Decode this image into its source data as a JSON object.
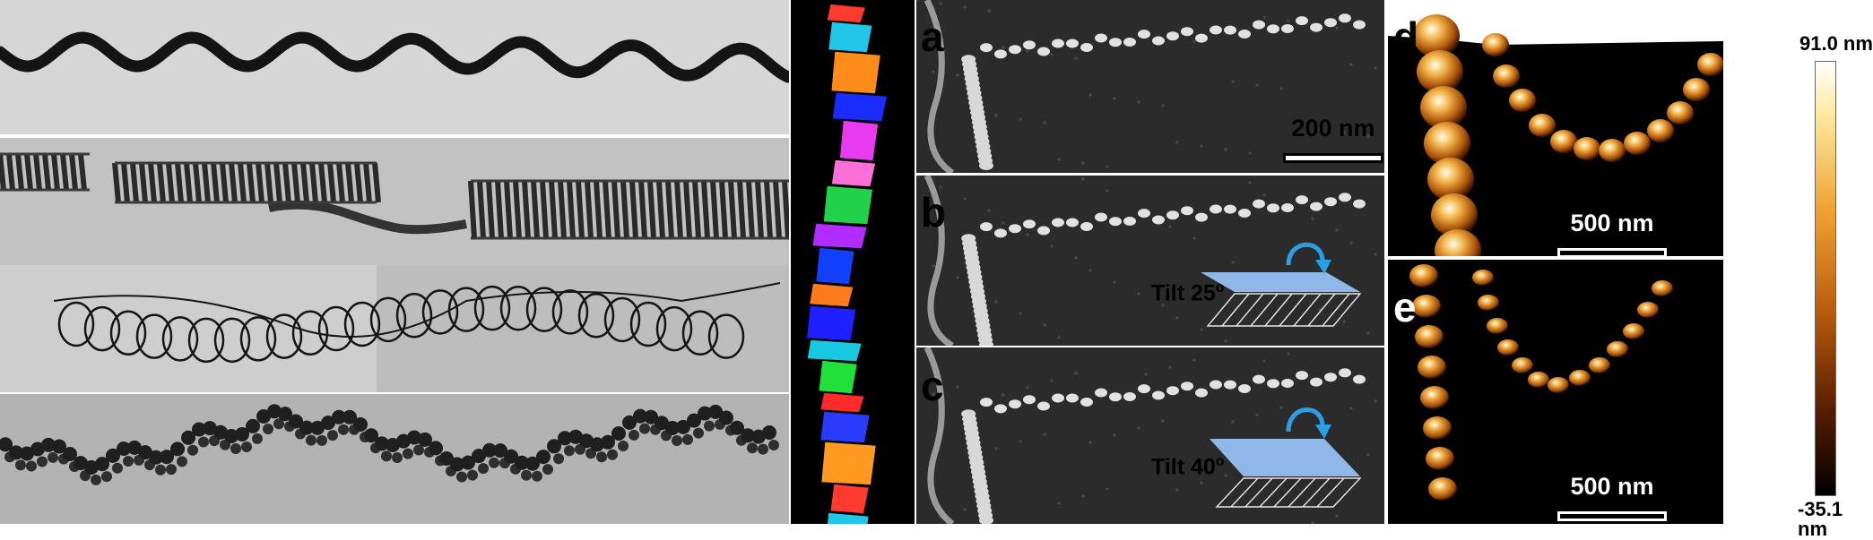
{
  "panels": {
    "a": {
      "letter": "a",
      "scale_label": "200 nm"
    },
    "b": {
      "letter": "b",
      "tilt_label": "Tilt 25",
      "tilt_deg_symbol": "o"
    },
    "c": {
      "letter": "c",
      "tilt_label": "Tilt 40",
      "tilt_deg_symbol": "o"
    },
    "d": {
      "letter": "d",
      "scale_label": "500 nm"
    },
    "e": {
      "letter": "e",
      "scale_label": "500 nm"
    }
  },
  "colorbar": {
    "max_label": "91.0 nm",
    "min_label": "-35.1 nm"
  },
  "colors": {
    "tilt_plane": "#8fb8e8",
    "tilt_arrow": "#2a9fe6",
    "afm_high": "#ffffe8",
    "afm_mid": "#d47a14",
    "afm_low": "#000000"
  }
}
